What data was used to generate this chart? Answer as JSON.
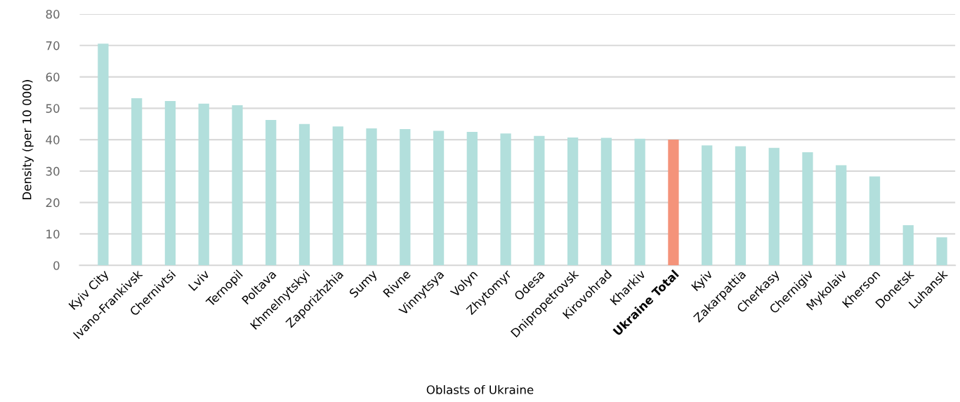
{
  "chart_data": {
    "type": "bar",
    "xlabel": "Oblasts of Ukraine",
    "ylabel": "Density (per 10 000)",
    "categories": [
      "Kyiv City",
      "Ivano-Frankivsk",
      "Chernivtsi",
      "Lviv",
      "Ternopil",
      "Poltava",
      "Khmelnytskyi",
      "Zaporizhzhia",
      "Sumy",
      "Rivne",
      "Vinnytsya",
      "Volyn",
      "Zhytomyr",
      "Odesa",
      "Dnipropetrovsk",
      "Kirovohrad",
      "Kharkiv",
      "Ukraine Total",
      "Kyiv",
      "Zakarpattia",
      "Cherkasy",
      "Chernigiv",
      "Mykolaiv",
      "Kherson",
      "Donetsk",
      "Luhansk"
    ],
    "values": [
      70.6,
      53.2,
      52.3,
      51.5,
      51.0,
      46.3,
      45.0,
      44.2,
      43.6,
      43.4,
      42.8,
      42.5,
      42.0,
      41.2,
      40.7,
      40.6,
      40.3,
      40.0,
      38.2,
      37.9,
      37.4,
      36.0,
      31.9,
      28.3,
      12.8,
      8.9
    ],
    "colors": [
      "#b2dfdc",
      "#b2dfdc",
      "#b2dfdc",
      "#b2dfdc",
      "#b2dfdc",
      "#b2dfdc",
      "#b2dfdc",
      "#b2dfdc",
      "#b2dfdc",
      "#b2dfdc",
      "#b2dfdc",
      "#b2dfdc",
      "#b2dfdc",
      "#b2dfdc",
      "#b2dfdc",
      "#b2dfdc",
      "#b2dfdc",
      "#f4937a",
      "#b2dfdc",
      "#b2dfdc",
      "#b2dfdc",
      "#b2dfdc",
      "#b2dfdc",
      "#b2dfdc",
      "#b2dfdc",
      "#b2dfdc"
    ],
    "ylim": [
      0,
      80
    ],
    "yticks": [
      0,
      10,
      20,
      30,
      40,
      50,
      60,
      70,
      80
    ],
    "grid": "y",
    "legend": false
  }
}
